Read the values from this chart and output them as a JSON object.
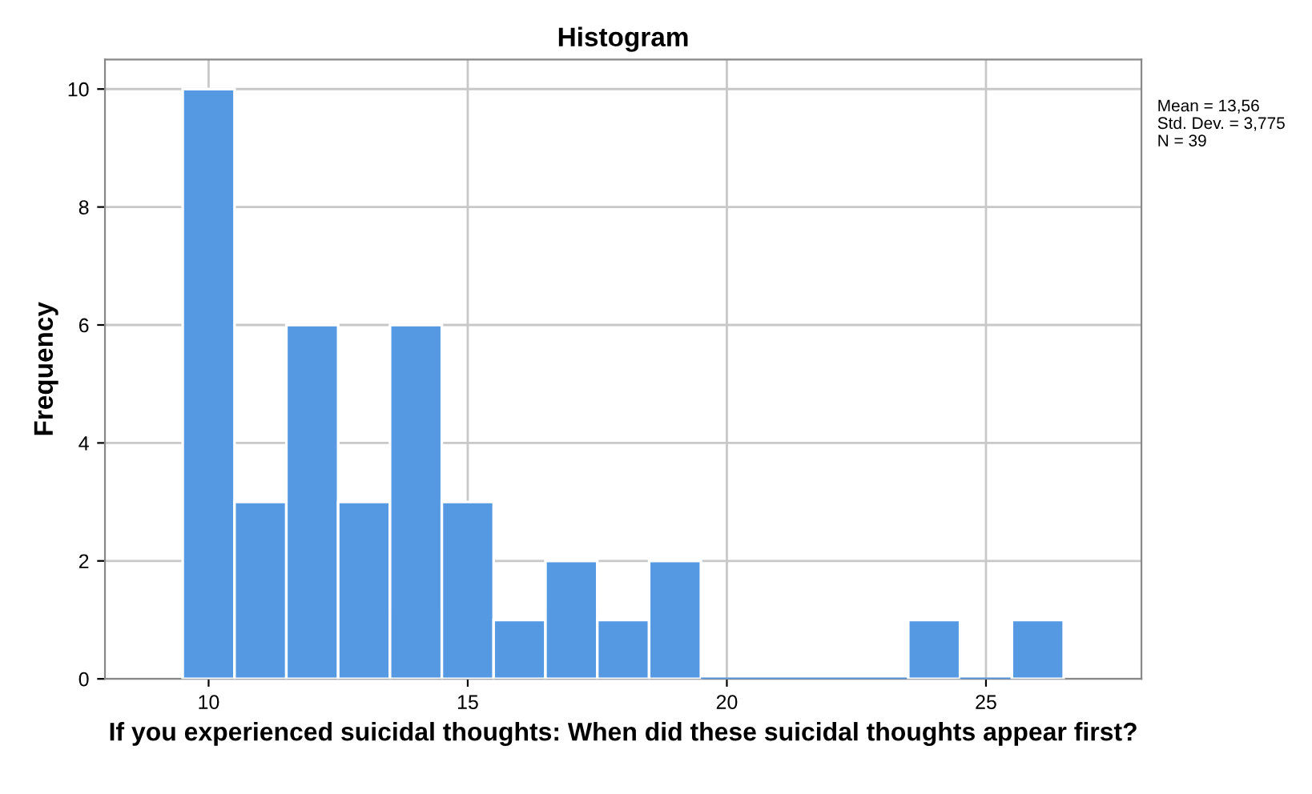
{
  "chart_data": {
    "type": "histogram",
    "title": "Histogram",
    "xlabel": "If you experienced suicidal thoughts: When did these suicidal thoughts appear first?",
    "ylabel": "Frequency",
    "bins": [
      9.5,
      10.5,
      11.5,
      12.5,
      13.5,
      14.5,
      15.5,
      16.5,
      17.5,
      18.5,
      19.5,
      20.5,
      21.5,
      22.5,
      23.5,
      24.5,
      25.5,
      26.5
    ],
    "values": [
      10,
      3,
      6,
      3,
      6,
      3,
      1,
      2,
      1,
      2,
      0,
      0,
      0,
      0,
      1,
      0,
      1
    ],
    "color": "#5599e3",
    "xlim": [
      8,
      28
    ],
    "xticks": [
      10,
      15,
      20,
      25
    ],
    "ylim": [
      0,
      10.5
    ],
    "yticks": [
      0,
      2,
      4,
      6,
      8,
      10
    ],
    "grid": true,
    "annotations": [
      "Mean = 13,56",
      "Std. Dev. = 3,775",
      "N = 39"
    ]
  }
}
